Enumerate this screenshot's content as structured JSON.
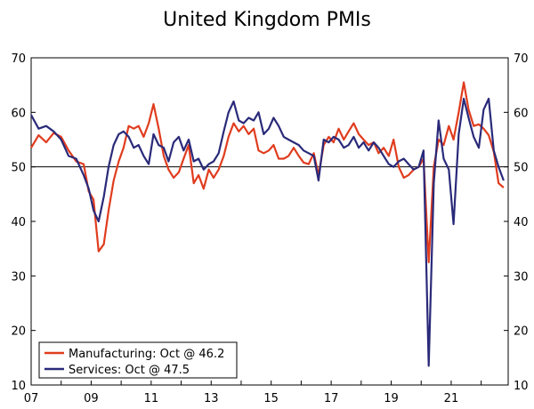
{
  "chart_data": {
    "type": "line",
    "title": "United Kingdom PMIs",
    "xlabel": "",
    "ylabel": "",
    "xlim": [
      2007.0,
      2022.9
    ],
    "ylim": [
      10,
      70
    ],
    "y_ticks": [
      10,
      20,
      30,
      40,
      50,
      60,
      70
    ],
    "x_ticks": [
      {
        "value": 2007,
        "label": "07"
      },
      {
        "value": 2009,
        "label": "09"
      },
      {
        "value": 2011,
        "label": "11"
      },
      {
        "value": 2013,
        "label": "13"
      },
      {
        "value": 2015,
        "label": "15"
      },
      {
        "value": 2017,
        "label": "17"
      },
      {
        "value": 2019,
        "label": "19"
      },
      {
        "value": 2021,
        "label": "21"
      }
    ],
    "reference_line": 50,
    "grid": false,
    "legend_position": "bottom-left",
    "series": [
      {
        "name": "Manufacturing: Oct @ 46.2",
        "color": "#e03c1e",
        "points": [
          [
            2007.0,
            53.5
          ],
          [
            2007.25,
            55.8
          ],
          [
            2007.5,
            54.5
          ],
          [
            2007.75,
            56.2
          ],
          [
            2008.0,
            55.5
          ],
          [
            2008.25,
            53.0
          ],
          [
            2008.5,
            51.0
          ],
          [
            2008.75,
            50.5
          ],
          [
            2008.92,
            45.5
          ],
          [
            2009.08,
            44.0
          ],
          [
            2009.25,
            34.5
          ],
          [
            2009.42,
            35.8
          ],
          [
            2009.58,
            42.0
          ],
          [
            2009.75,
            47.5
          ],
          [
            2009.92,
            51.0
          ],
          [
            2010.08,
            53.5
          ],
          [
            2010.25,
            57.5
          ],
          [
            2010.42,
            57.0
          ],
          [
            2010.58,
            57.5
          ],
          [
            2010.75,
            55.5
          ],
          [
            2010.92,
            58.0
          ],
          [
            2011.08,
            61.5
          ],
          [
            2011.25,
            57.0
          ],
          [
            2011.42,
            52.0
          ],
          [
            2011.58,
            49.5
          ],
          [
            2011.75,
            48.0
          ],
          [
            2011.92,
            49.0
          ],
          [
            2012.08,
            51.5
          ],
          [
            2012.25,
            54.0
          ],
          [
            2012.42,
            47.0
          ],
          [
            2012.58,
            48.5
          ],
          [
            2012.75,
            46.0
          ],
          [
            2012.92,
            49.5
          ],
          [
            2013.08,
            48.0
          ],
          [
            2013.25,
            49.5
          ],
          [
            2013.42,
            52.0
          ],
          [
            2013.58,
            55.5
          ],
          [
            2013.75,
            58.0
          ],
          [
            2013.92,
            56.5
          ],
          [
            2014.08,
            57.5
          ],
          [
            2014.25,
            56.0
          ],
          [
            2014.42,
            57.0
          ],
          [
            2014.58,
            53.0
          ],
          [
            2014.75,
            52.5
          ],
          [
            2014.92,
            53.0
          ],
          [
            2015.08,
            54.0
          ],
          [
            2015.25,
            51.5
          ],
          [
            2015.42,
            51.5
          ],
          [
            2015.58,
            52.0
          ],
          [
            2015.75,
            53.5
          ],
          [
            2015.92,
            52.0
          ],
          [
            2016.08,
            50.8
          ],
          [
            2016.25,
            50.5
          ],
          [
            2016.42,
            52.5
          ],
          [
            2016.58,
            48.5
          ],
          [
            2016.75,
            54.0
          ],
          [
            2016.92,
            55.5
          ],
          [
            2017.08,
            54.5
          ],
          [
            2017.25,
            57.0
          ],
          [
            2017.42,
            55.0
          ],
          [
            2017.58,
            56.5
          ],
          [
            2017.75,
            58.0
          ],
          [
            2017.92,
            56.0
          ],
          [
            2018.08,
            55.0
          ],
          [
            2018.25,
            54.0
          ],
          [
            2018.42,
            54.5
          ],
          [
            2018.58,
            52.5
          ],
          [
            2018.75,
            53.5
          ],
          [
            2018.92,
            52.0
          ],
          [
            2019.08,
            55.0
          ],
          [
            2019.25,
            50.0
          ],
          [
            2019.42,
            48.0
          ],
          [
            2019.58,
            48.5
          ],
          [
            2019.75,
            49.5
          ],
          [
            2019.92,
            50.0
          ],
          [
            2020.08,
            51.5
          ],
          [
            2020.25,
            32.5
          ],
          [
            2020.42,
            50.0
          ],
          [
            2020.58,
            55.0
          ],
          [
            2020.75,
            54.0
          ],
          [
            2020.92,
            57.5
          ],
          [
            2021.08,
            55.0
          ],
          [
            2021.25,
            60.0
          ],
          [
            2021.42,
            65.5
          ],
          [
            2021.58,
            60.5
          ],
          [
            2021.75,
            57.5
          ],
          [
            2021.92,
            57.8
          ],
          [
            2022.08,
            57.0
          ],
          [
            2022.25,
            55.8
          ],
          [
            2022.42,
            52.8
          ],
          [
            2022.58,
            47.0
          ],
          [
            2022.75,
            46.2
          ]
        ]
      },
      {
        "name": "Services: Oct @ 47.5",
        "color": "#2a2a7a",
        "points": [
          [
            2007.0,
            59.5
          ],
          [
            2007.25,
            57.0
          ],
          [
            2007.5,
            57.5
          ],
          [
            2007.75,
            56.5
          ],
          [
            2008.0,
            55.0
          ],
          [
            2008.25,
            52.0
          ],
          [
            2008.5,
            51.5
          ],
          [
            2008.75,
            48.5
          ],
          [
            2008.92,
            46.0
          ],
          [
            2009.08,
            42.0
          ],
          [
            2009.25,
            40.0
          ],
          [
            2009.42,
            44.5
          ],
          [
            2009.58,
            50.0
          ],
          [
            2009.75,
            54.0
          ],
          [
            2009.92,
            56.0
          ],
          [
            2010.08,
            56.5
          ],
          [
            2010.25,
            55.5
          ],
          [
            2010.42,
            53.5
          ],
          [
            2010.58,
            54.0
          ],
          [
            2010.75,
            52.0
          ],
          [
            2010.92,
            50.5
          ],
          [
            2011.08,
            56.0
          ],
          [
            2011.25,
            54.0
          ],
          [
            2011.42,
            53.5
          ],
          [
            2011.58,
            51.0
          ],
          [
            2011.75,
            54.5
          ],
          [
            2011.92,
            55.5
          ],
          [
            2012.08,
            53.0
          ],
          [
            2012.25,
            55.0
          ],
          [
            2012.42,
            51.0
          ],
          [
            2012.58,
            51.5
          ],
          [
            2012.75,
            49.5
          ],
          [
            2012.92,
            50.5
          ],
          [
            2013.08,
            51.0
          ],
          [
            2013.25,
            52.5
          ],
          [
            2013.42,
            56.5
          ],
          [
            2013.58,
            60.0
          ],
          [
            2013.75,
            62.0
          ],
          [
            2013.92,
            58.5
          ],
          [
            2014.08,
            58.0
          ],
          [
            2014.25,
            59.0
          ],
          [
            2014.42,
            58.5
          ],
          [
            2014.58,
            60.0
          ],
          [
            2014.75,
            56.0
          ],
          [
            2014.92,
            57.0
          ],
          [
            2015.08,
            59.0
          ],
          [
            2015.25,
            57.5
          ],
          [
            2015.42,
            55.5
          ],
          [
            2015.58,
            55.0
          ],
          [
            2015.75,
            54.5
          ],
          [
            2015.92,
            54.0
          ],
          [
            2016.08,
            53.0
          ],
          [
            2016.25,
            52.5
          ],
          [
            2016.42,
            52.0
          ],
          [
            2016.58,
            47.5
          ],
          [
            2016.75,
            55.0
          ],
          [
            2016.92,
            54.5
          ],
          [
            2017.08,
            55.5
          ],
          [
            2017.25,
            55.0
          ],
          [
            2017.42,
            53.5
          ],
          [
            2017.58,
            54.0
          ],
          [
            2017.75,
            55.5
          ],
          [
            2017.92,
            53.5
          ],
          [
            2018.08,
            54.5
          ],
          [
            2018.25,
            53.0
          ],
          [
            2018.42,
            54.5
          ],
          [
            2018.58,
            53.5
          ],
          [
            2018.75,
            52.0
          ],
          [
            2018.92,
            50.5
          ],
          [
            2019.08,
            50.0
          ],
          [
            2019.25,
            51.0
          ],
          [
            2019.42,
            51.5
          ],
          [
            2019.58,
            50.5
          ],
          [
            2019.75,
            49.5
          ],
          [
            2019.92,
            50.0
          ],
          [
            2020.08,
            53.0
          ],
          [
            2020.25,
            13.5
          ],
          [
            2020.42,
            47.0
          ],
          [
            2020.58,
            58.5
          ],
          [
            2020.75,
            51.5
          ],
          [
            2020.92,
            49.5
          ],
          [
            2021.08,
            39.5
          ],
          [
            2021.25,
            56.0
          ],
          [
            2021.42,
            62.5
          ],
          [
            2021.58,
            59.0
          ],
          [
            2021.75,
            55.5
          ],
          [
            2021.92,
            53.5
          ],
          [
            2022.08,
            60.5
          ],
          [
            2022.25,
            62.5
          ],
          [
            2022.42,
            53.0
          ],
          [
            2022.58,
            50.0
          ],
          [
            2022.75,
            47.5
          ]
        ]
      }
    ]
  }
}
